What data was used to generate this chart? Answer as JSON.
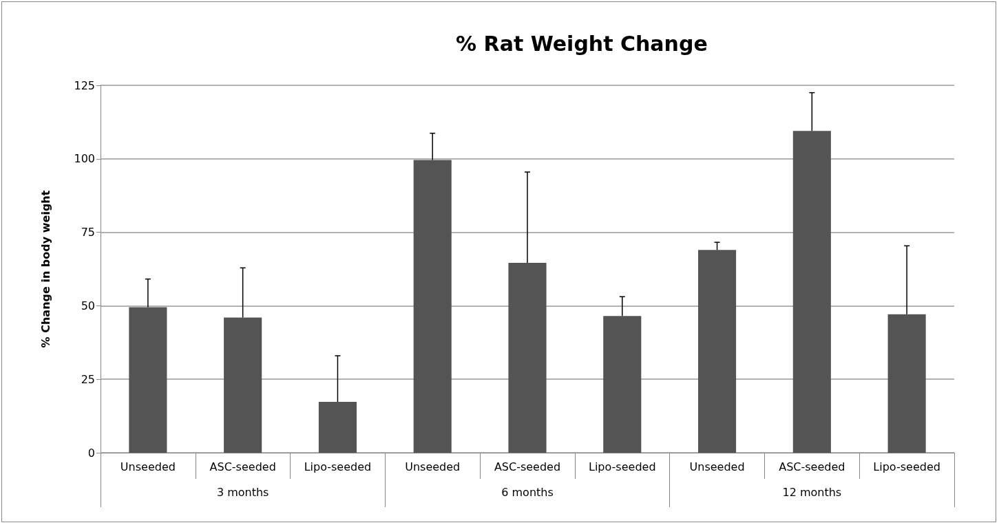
{
  "chart_data": {
    "type": "bar",
    "title": "% Rat Weight Change",
    "ylabel": "% Change in body weight",
    "categories": [
      "Unseeded",
      "ASC-seeded",
      "Lipo-seeded",
      "Unseeded",
      "ASC-seeded",
      "Lipo-seeded",
      "Unseeded",
      "ASC-seeded",
      "Lipo-seeded"
    ],
    "values": [
      49.5,
      46,
      17.3,
      99.6,
      64.6,
      46.5,
      69,
      109.5,
      47.1
    ],
    "errors": [
      [
        49.5,
        59.1
      ],
      [
        46,
        62.9
      ],
      [
        17.3,
        33
      ],
      [
        99.6,
        108.7
      ],
      [
        64.6,
        95.5
      ],
      [
        46.5,
        53.1
      ],
      [
        69,
        71.6
      ],
      [
        109.5,
        122.5
      ],
      [
        47.1,
        70.4
      ]
    ],
    "color": "#545454",
    "annotations": [
      "3 months",
      "6 months",
      "12 months"
    ],
    "ylim": [
      0,
      125
    ],
    "yticks": [
      0,
      25,
      50,
      75,
      100,
      125
    ],
    "grid": "y"
  }
}
